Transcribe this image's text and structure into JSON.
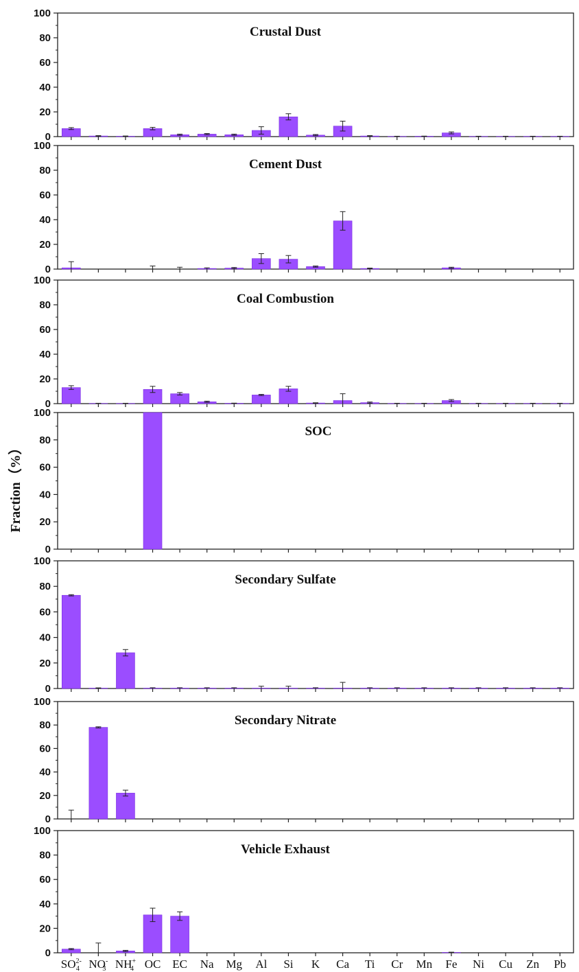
{
  "chart_data": {
    "type": "bar",
    "ylabel": "Fraction（%）",
    "ylim": [
      0,
      100
    ],
    "yticks": [
      0,
      20,
      40,
      60,
      80,
      100
    ],
    "bar_color": "#9b4dff",
    "categories": [
      {
        "base": "SO",
        "sub": "4",
        "sup": "2-"
      },
      {
        "base": "NO",
        "sub": "3",
        "sup": "-"
      },
      {
        "base": "NH",
        "sub": "4",
        "sup": "+"
      },
      {
        "base": "OC"
      },
      {
        "base": "EC"
      },
      {
        "base": "Na"
      },
      {
        "base": "Mg"
      },
      {
        "base": "Al"
      },
      {
        "base": "Si"
      },
      {
        "base": "K"
      },
      {
        "base": "Ca"
      },
      {
        "base": "Ti"
      },
      {
        "base": "Cr"
      },
      {
        "base": "Mn"
      },
      {
        "base": "Fe"
      },
      {
        "base": "Ni"
      },
      {
        "base": "Cu"
      },
      {
        "base": "Zn"
      },
      {
        "base": "Pb"
      }
    ],
    "panels": [
      {
        "title": "Crustal Dust",
        "values": [
          6.5,
          0.5,
          0.3,
          6.5,
          1.5,
          2,
          1.5,
          5,
          16,
          1.2,
          8.5,
          0.5,
          0.2,
          0.3,
          3,
          0.2,
          0.2,
          0.2,
          0.2
        ],
        "errors": [
          0.8,
          0.3,
          0.2,
          1,
          0.5,
          0.5,
          0.5,
          3,
          2.5,
          0.5,
          4,
          0.3,
          0.1,
          0.1,
          0.8,
          0.1,
          0.1,
          0.1,
          0.1
        ]
      },
      {
        "title": "Cement Dust",
        "values": [
          1,
          0,
          0,
          0,
          0,
          0.5,
          0.8,
          8.5,
          8,
          2,
          39,
          0.5,
          0,
          0,
          1,
          0,
          0,
          0,
          0
        ],
        "errors": [
          5,
          0,
          0,
          2.5,
          1.5,
          0.5,
          0.5,
          4,
          3,
          0.5,
          7.5,
          0.3,
          0,
          0,
          0.5,
          0,
          0,
          0,
          0
        ]
      },
      {
        "title": "Coal Combustion",
        "values": [
          13,
          0.2,
          0.2,
          11.5,
          8,
          1.5,
          0.3,
          7,
          12,
          0.5,
          2.5,
          0.8,
          0.2,
          0.2,
          2.5,
          0.2,
          0.2,
          0.2,
          0.2
        ],
        "errors": [
          1.5,
          0.1,
          0.1,
          2.5,
          1,
          0.5,
          0.1,
          0.5,
          2,
          0.2,
          5.5,
          0.5,
          0.1,
          0.1,
          0.8,
          0.1,
          0.1,
          0.1,
          0.1
        ]
      },
      {
        "title": "SOC",
        "values": [
          0,
          0,
          0,
          100,
          0,
          0,
          0,
          0,
          0,
          0,
          0,
          0,
          0,
          0,
          0,
          0,
          0,
          0,
          0
        ],
        "errors": [
          0,
          0,
          0,
          0,
          0,
          0,
          0,
          0,
          0,
          0,
          0,
          0,
          0,
          0,
          0,
          0,
          0,
          0,
          0
        ]
      },
      {
        "title": "Secondary Sulfate",
        "values": [
          73,
          0.3,
          28,
          0.3,
          0.3,
          0.3,
          0.3,
          0.3,
          0.3,
          0.3,
          0.3,
          0.3,
          0.3,
          0.3,
          0.3,
          0.3,
          0.3,
          0.3,
          0.3
        ],
        "errors": [
          0.5,
          0.2,
          2.5,
          0.3,
          0.3,
          0.3,
          0.3,
          1.5,
          1.5,
          0.3,
          4.5,
          0.3,
          0.3,
          0.3,
          0.3,
          0.3,
          0.3,
          0.3,
          0.3
        ]
      },
      {
        "title": "Secondary Nitrate",
        "values": [
          0,
          78,
          22,
          0,
          0,
          0,
          0,
          0,
          0,
          0,
          0,
          0,
          0,
          0,
          0,
          0,
          0,
          0,
          0
        ],
        "errors": [
          7.5,
          0.5,
          2.5,
          0,
          0,
          0,
          0,
          0,
          0,
          0,
          0,
          0,
          0,
          0,
          0,
          0,
          0,
          0,
          0
        ]
      },
      {
        "title": "Vehicle Exhaust",
        "values": [
          3,
          0,
          1.5,
          31,
          30,
          0,
          0,
          0,
          0,
          0,
          0,
          0,
          0,
          0,
          0.3,
          0,
          0,
          0,
          0
        ],
        "errors": [
          0.5,
          8,
          0.5,
          5.5,
          3.5,
          0,
          0,
          0,
          0,
          0,
          0,
          0,
          0,
          0,
          0.2,
          0,
          0,
          0,
          0
        ]
      }
    ]
  }
}
